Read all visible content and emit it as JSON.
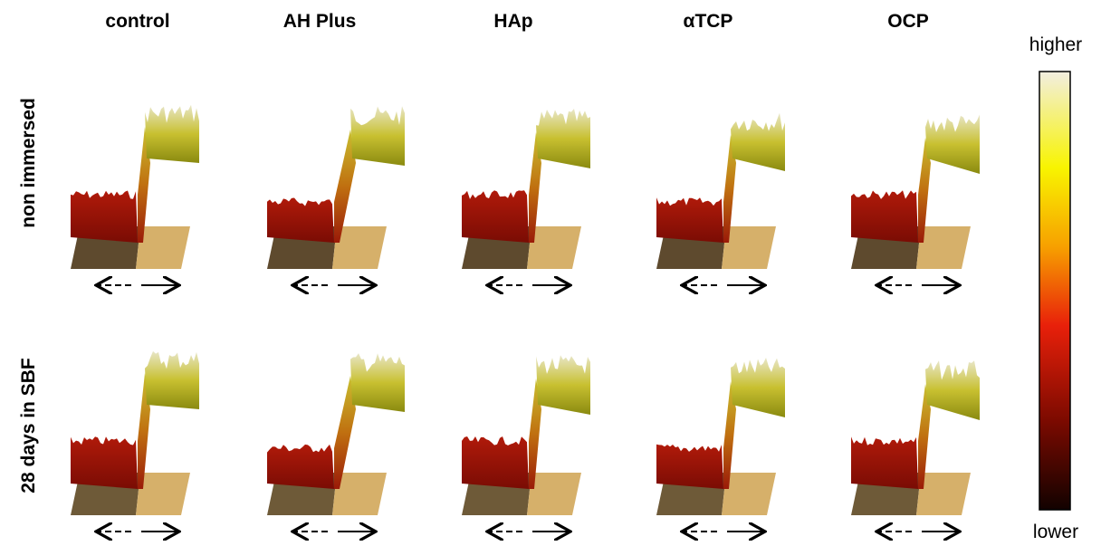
{
  "columns": [
    "control",
    "AH Plus",
    "HAp",
    "αTCP",
    "OCP"
  ],
  "rows": [
    "non immersed",
    "28 days in SBF"
  ],
  "colorbar": {
    "top_label": "higher",
    "bottom_label": "lower"
  }
}
